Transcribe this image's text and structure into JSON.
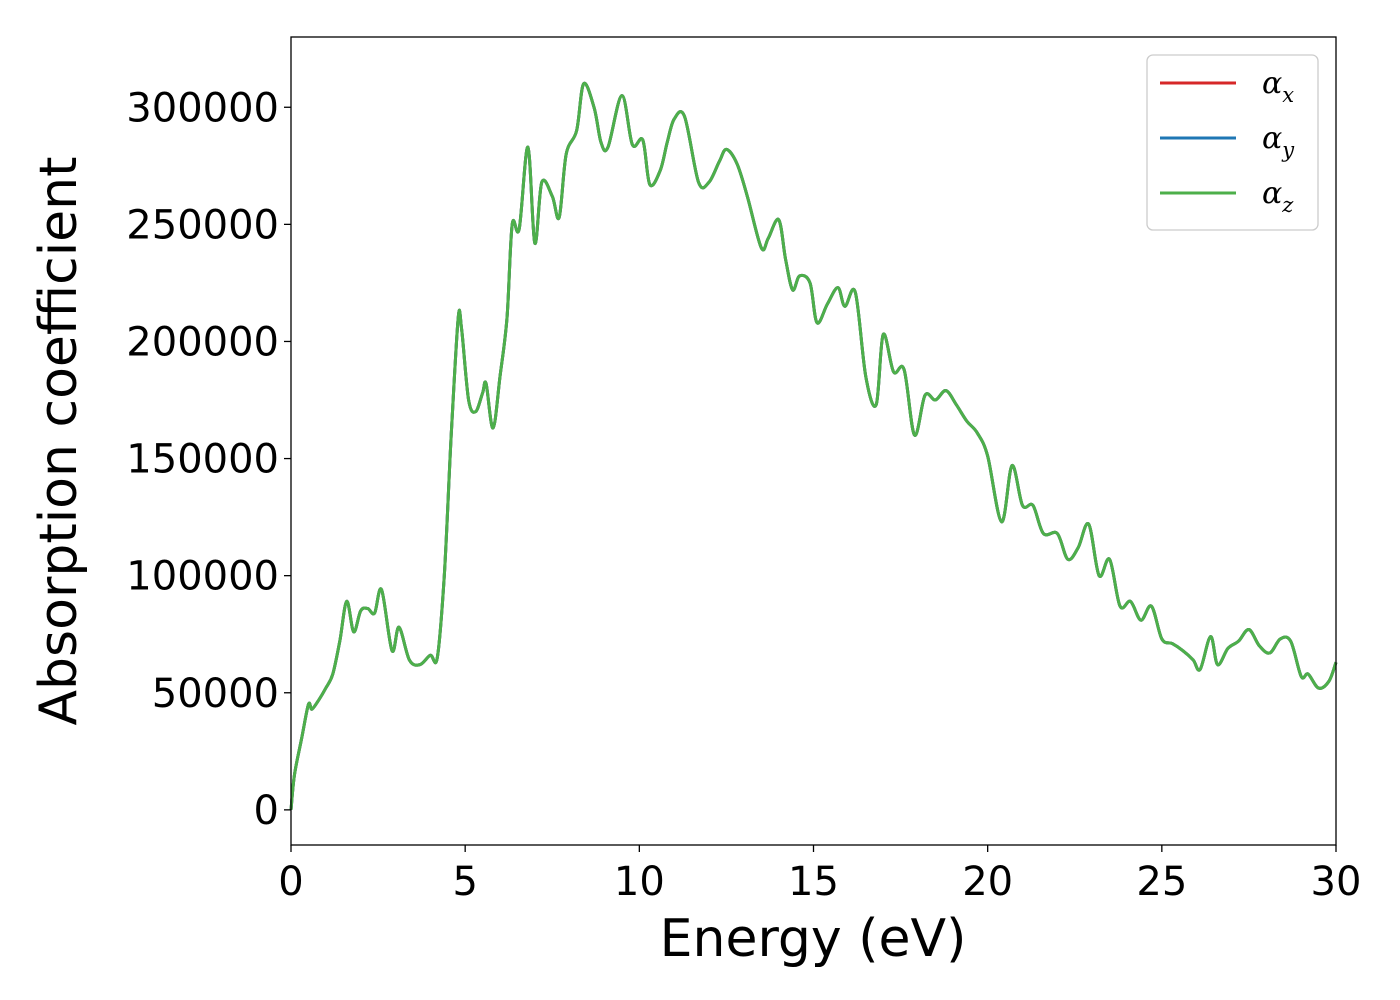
{
  "chart_data": {
    "type": "line",
    "xlabel": "Energy (eV)",
    "ylabel": "Absorption coefficient",
    "xlim": [
      0,
      30
    ],
    "ylim": [
      -15000,
      330000
    ],
    "x_ticks": [
      0,
      5,
      10,
      15,
      20,
      25,
      30
    ],
    "y_ticks": [
      0,
      50000,
      100000,
      150000,
      200000,
      250000,
      300000
    ],
    "grid": false,
    "legend_position": "top-right",
    "series": [
      {
        "name": "α",
        "subscript": "x",
        "color": "#d62728",
        "x_ref": "z",
        "y_ref": "z"
      },
      {
        "name": "α",
        "subscript": "y",
        "color": "#1f77b4",
        "x_ref": "z",
        "y_ref": "z"
      },
      {
        "name": "α",
        "subscript": "z",
        "color": "#4daf4a",
        "x": [
          0,
          0.1,
          0.3,
          0.5,
          0.6,
          0.8,
          1.0,
          1.2,
          1.4,
          1.6,
          1.8,
          2.0,
          2.2,
          2.4,
          2.6,
          2.9,
          3.1,
          3.4,
          3.7,
          4.0,
          4.2,
          4.4,
          4.6,
          4.8,
          4.9,
          5.1,
          5.3,
          5.5,
          5.6,
          5.8,
          6.0,
          6.2,
          6.35,
          6.55,
          6.8,
          7.0,
          7.2,
          7.5,
          7.7,
          7.9,
          8.2,
          8.4,
          8.7,
          8.9,
          9.1,
          9.5,
          9.8,
          10.1,
          10.3,
          10.6,
          10.8,
          11.0,
          11.3,
          11.7,
          12.0,
          12.3,
          12.5,
          12.8,
          13.1,
          13.5,
          13.7,
          14.0,
          14.2,
          14.4,
          14.6,
          14.9,
          15.1,
          15.4,
          15.7,
          15.9,
          16.2,
          16.5,
          16.8,
          17.0,
          17.3,
          17.6,
          17.9,
          18.2,
          18.5,
          18.8,
          19.1,
          19.4,
          19.7,
          20.0,
          20.4,
          20.7,
          21.0,
          21.3,
          21.6,
          22.0,
          22.3,
          22.6,
          22.9,
          23.2,
          23.5,
          23.8,
          24.1,
          24.4,
          24.7,
          25.0,
          25.3,
          25.6,
          25.9,
          26.1,
          26.4,
          26.6,
          26.9,
          27.2,
          27.5,
          27.8,
          28.1,
          28.4,
          28.7,
          29.0,
          29.2,
          29.5,
          29.8,
          30.0
        ],
        "y": [
          0,
          15000,
          30000,
          45000,
          43000,
          47000,
          52000,
          58000,
          72000,
          89000,
          76000,
          85000,
          86000,
          84000,
          94000,
          68000,
          78000,
          64000,
          62000,
          66000,
          65000,
          100000,
          160000,
          210000,
          205000,
          175000,
          170000,
          178000,
          182000,
          163000,
          185000,
          210000,
          250000,
          248000,
          283000,
          242000,
          268000,
          262000,
          253000,
          280000,
          290000,
          310000,
          300000,
          285000,
          283000,
          305000,
          284000,
          286000,
          267000,
          273000,
          285000,
          295000,
          296000,
          268000,
          268000,
          277000,
          282000,
          276000,
          262000,
          240000,
          244000,
          252000,
          235000,
          222000,
          228000,
          225000,
          208000,
          216000,
          223000,
          215000,
          221000,
          185000,
          173000,
          203000,
          187000,
          188000,
          160000,
          177000,
          175000,
          179000,
          173000,
          166000,
          161000,
          151000,
          123000,
          147000,
          130000,
          130000,
          118000,
          118000,
          107000,
          112000,
          122000,
          100000,
          107000,
          87000,
          89000,
          81000,
          87000,
          73000,
          71000,
          68000,
          64000,
          60000,
          74000,
          62000,
          69000,
          72000,
          77000,
          70000,
          67000,
          73000,
          72000,
          57000,
          58000,
          52000,
          55000,
          63000
        ]
      }
    ]
  }
}
